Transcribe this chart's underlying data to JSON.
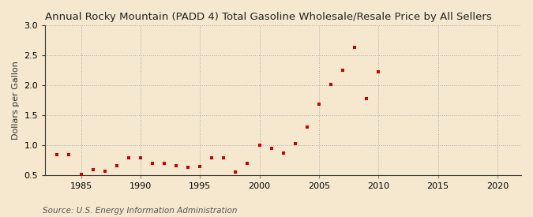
{
  "title": "Annual Rocky Mountain (PADD 4) Total Gasoline Wholesale/Resale Price by All Sellers",
  "ylabel": "Dollars per Gallon",
  "source": "Source: U.S. Energy Information Administration",
  "background_color": "#f5e8ce",
  "plot_bg_color": "#f5e8ce",
  "marker_color": "#cc0000",
  "years": [
    1983,
    1984,
    1985,
    1986,
    1987,
    1988,
    1989,
    1990,
    1991,
    1992,
    1993,
    1994,
    1995,
    1996,
    1997,
    1998,
    1999,
    2000,
    2001,
    2002,
    2003,
    2004,
    2005,
    2006,
    2007,
    2008,
    2009,
    2010
  ],
  "values": [
    0.84,
    0.84,
    0.51,
    0.59,
    0.56,
    0.65,
    0.79,
    0.79,
    0.7,
    0.7,
    0.65,
    0.63,
    0.64,
    0.79,
    0.79,
    0.55,
    0.7,
    1.0,
    0.95,
    0.86,
    1.02,
    1.3,
    1.68,
    2.01,
    2.25,
    2.63,
    1.78,
    2.22
  ],
  "xlim": [
    1982,
    2022
  ],
  "ylim": [
    0.5,
    3.0
  ],
  "xticks": [
    1985,
    1990,
    1995,
    2000,
    2005,
    2010,
    2015,
    2020
  ],
  "yticks": [
    0.5,
    1.0,
    1.5,
    2.0,
    2.5,
    3.0
  ],
  "title_fontsize": 9.5,
  "label_fontsize": 8,
  "tick_fontsize": 8,
  "source_fontsize": 7.5
}
